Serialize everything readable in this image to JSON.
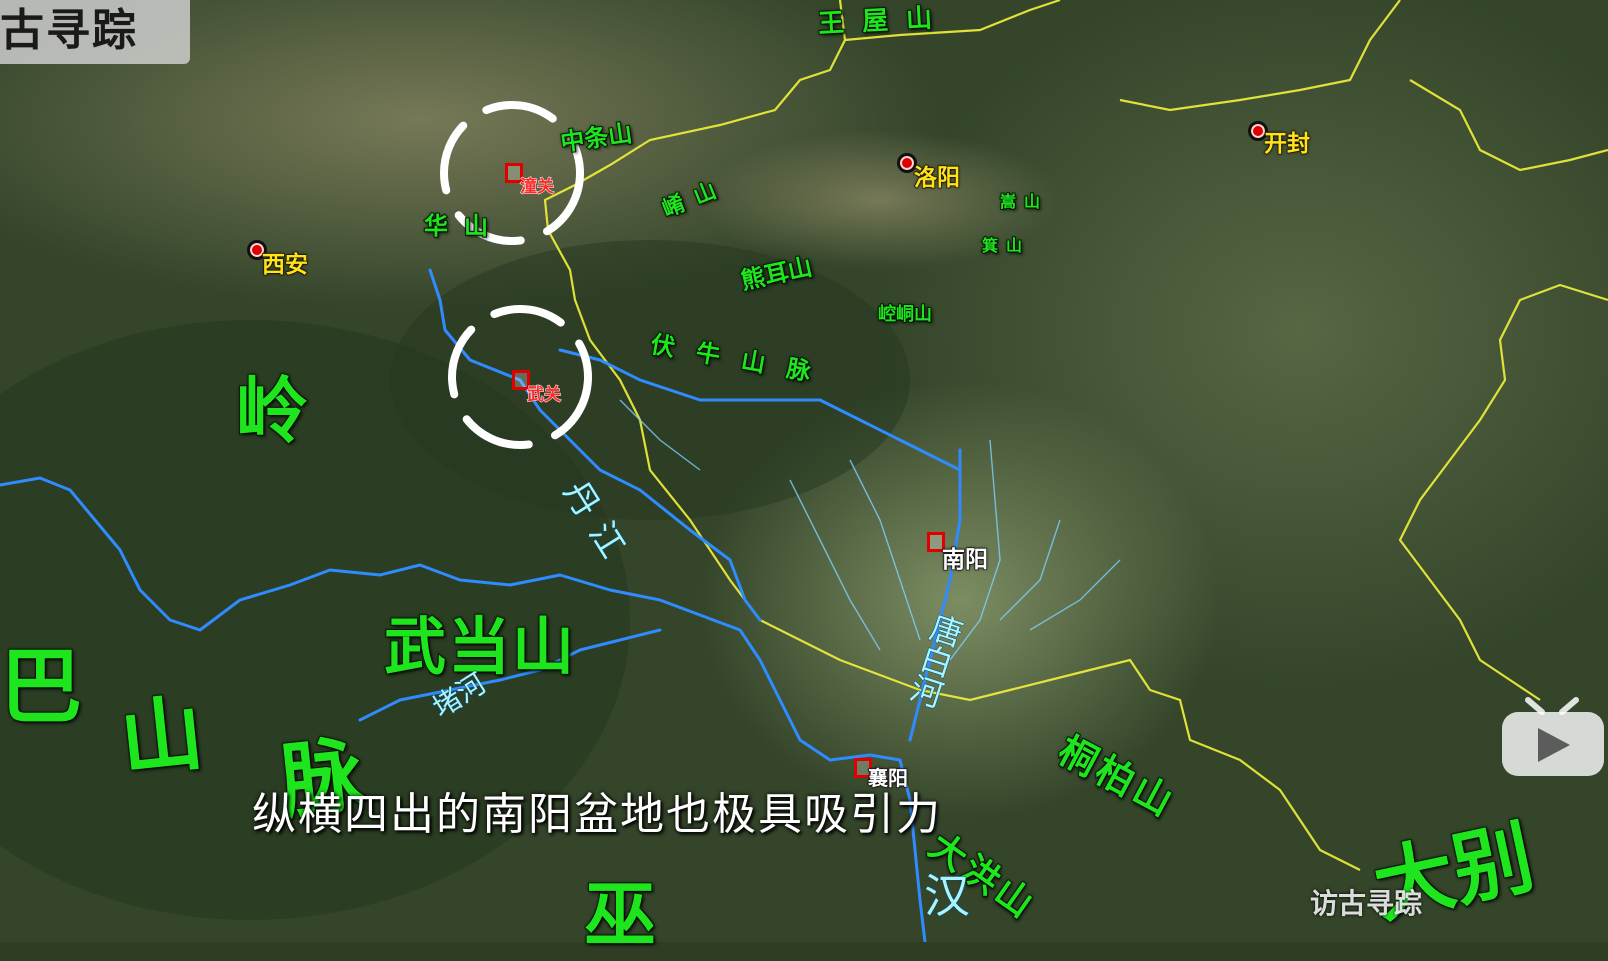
{
  "logo": {
    "text": "古寻踪"
  },
  "subtitle": "纵横四出的南阳盆地也极具吸引力",
  "watermark": "访古寻踪",
  "cities": {
    "kaifeng": "开封",
    "luoyang": "洛阳",
    "xian": "西安",
    "nanyang": "南阳",
    "xiangyang": "襄阳"
  },
  "passes": {
    "tongguan": "潼关",
    "wuguan": "武关"
  },
  "mountains": {
    "wangwu": "王屋山",
    "zhongtiao": "中条山",
    "hua": "华山",
    "xiao": "崤山",
    "song": "嵩山",
    "ji": "箕山",
    "xionger": "熊耳山",
    "kongtong": "崆峒山",
    "funiu": "伏牛山脉",
    "qinling_char": "岭",
    "wudang": "武当山",
    "daba_char1": "巴",
    "daba_char2": "山",
    "daba_char3": "脉",
    "wu_char": "巫",
    "tongbai": "桐柏山",
    "dahong": "大洪山",
    "dabie": "大别"
  },
  "rivers": {
    "dan": "丹江",
    "du": "堵河",
    "tangbai": "唐白河",
    "han": "汉"
  },
  "colors": {
    "mountain_label": "#1fe51f",
    "city_label": "#ffe21a",
    "river": "#2f8cff",
    "border": "#f2f23a"
  }
}
